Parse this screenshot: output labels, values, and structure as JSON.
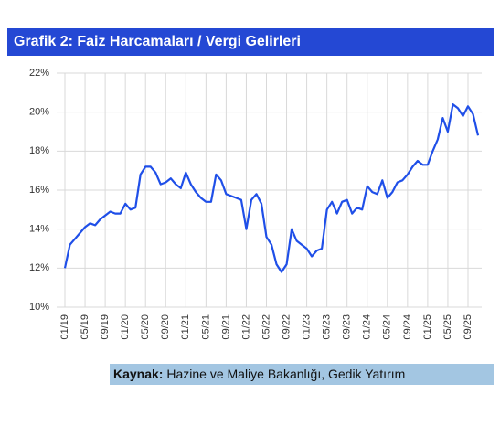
{
  "chart_data": {
    "type": "line",
    "title": "Grafik 2: Faiz Harcamaları / Vergi Gelirleri",
    "source_label": "Kaynak:",
    "source": "Hazine ve Maliye Bakanlığı, Gedik Yatırım",
    "categories": [
      "01/19",
      null,
      null,
      null,
      "05/19",
      null,
      null,
      null,
      "09/19",
      null,
      null,
      null,
      "01/20",
      null,
      null,
      null,
      "05/20",
      null,
      null,
      null,
      "09/20",
      null,
      null,
      null,
      "01/21",
      null,
      null,
      null,
      "05/21",
      null,
      null,
      null,
      "09/21",
      null,
      null,
      null,
      "01/22",
      null,
      null,
      null,
      "05/22",
      null,
      null,
      null,
      "09/22",
      null,
      null,
      null,
      "01/23",
      null,
      null,
      null,
      "05/23",
      null,
      null,
      null,
      "09/23",
      null,
      null,
      null,
      "01/24",
      null,
      null,
      null,
      "05/24",
      null,
      null,
      null,
      "09/24",
      null,
      null,
      null,
      "01/25",
      null,
      null,
      null,
      "05/25",
      null,
      null,
      null,
      "09/25",
      null,
      null
    ],
    "series": [
      {
        "name": "Faiz Harcamaları / Vergi Gelirleri",
        "color": "#1f4fe8",
        "values": [
          12.0,
          13.2,
          13.5,
          13.8,
          14.1,
          14.3,
          14.2,
          14.5,
          14.7,
          14.9,
          14.8,
          14.8,
          15.3,
          15.0,
          15.1,
          16.8,
          17.2,
          17.2,
          16.9,
          16.3,
          16.4,
          16.6,
          16.3,
          16.1,
          16.9,
          16.3,
          15.9,
          15.6,
          15.4,
          15.4,
          16.8,
          16.5,
          15.8,
          15.7,
          15.6,
          15.5,
          14.0,
          15.5,
          15.8,
          15.3,
          13.6,
          13.2,
          12.2,
          11.8,
          12.2,
          14.0,
          13.4,
          13.2,
          13.0,
          12.6,
          12.9,
          13.0,
          15.0,
          15.4,
          14.8,
          15.4,
          15.5,
          14.8,
          15.1,
          15.0,
          16.2,
          15.9,
          15.8,
          16.5,
          15.6,
          15.9,
          16.4,
          16.5,
          16.8,
          17.2,
          17.5,
          17.3,
          17.3,
          18.0,
          18.6,
          19.7,
          19.0,
          20.4,
          20.2,
          19.8,
          20.3,
          19.9,
          18.8
        ]
      }
    ],
    "ylim": [
      10,
      22
    ],
    "yticks": [
      {
        "value": 10,
        "label": "10%"
      },
      {
        "value": 12,
        "label": "12%"
      },
      {
        "value": 14,
        "label": "14%"
      },
      {
        "value": 16,
        "label": "16%"
      },
      {
        "value": 18,
        "label": "18%"
      },
      {
        "value": 20,
        "label": "20%"
      },
      {
        "value": 22,
        "label": "22%"
      }
    ],
    "grid": true
  }
}
